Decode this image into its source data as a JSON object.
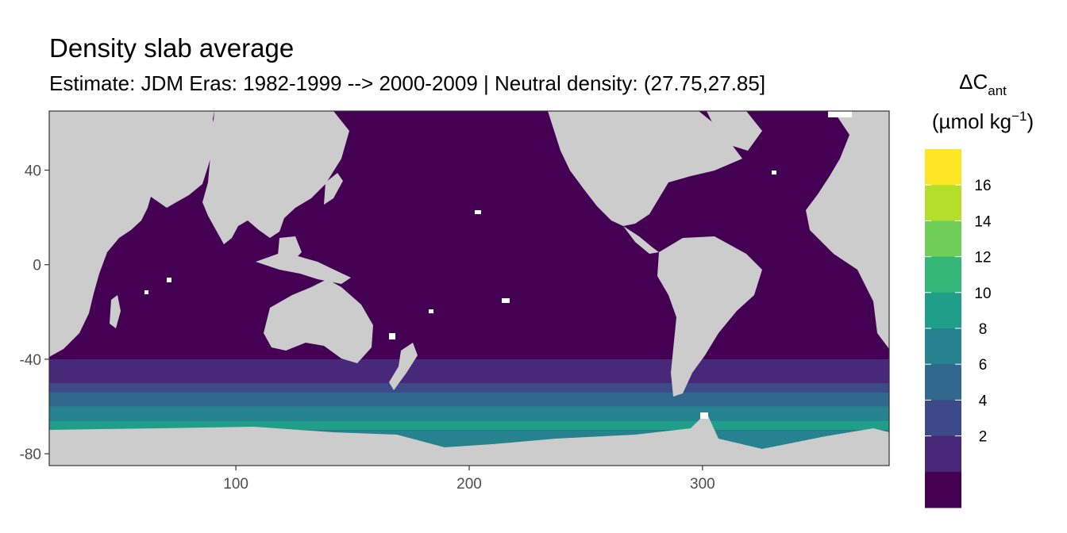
{
  "title": "Density slab average",
  "subtitle": "Estimate: JDM Eras: 1982-1999 --> 2000-2009 | Neutral density: (27.75,27.85]",
  "chart_data": {
    "type": "heatmap",
    "title": "Density slab average",
    "subtitle": "Estimate: JDM Eras: 1982-1999 --> 2000-2009 | Neutral density: (27.75,27.85]",
    "xlim": [
      20,
      380
    ],
    "ylim": [
      -85,
      65
    ],
    "x_ticks": [
      100,
      200,
      300
    ],
    "y_ticks": [
      40,
      0,
      -40,
      -80
    ],
    "land_color": "#cccccc",
    "nodata_color": "#ffffff",
    "legend": {
      "title_main": "ΔC",
      "title_sub": "ant",
      "unit_open": "(µmol kg",
      "unit_sup": "−1",
      "unit_close": ")",
      "labels": [
        "16",
        "14",
        "12",
        "10",
        "8",
        "6",
        "4",
        "2"
      ],
      "colors": [
        "#fde725",
        "#b5de2b",
        "#6ece58",
        "#35b779",
        "#1f9e89",
        "#26828e",
        "#31688e",
        "#3e4989",
        "#482878",
        "#440154"
      ]
    },
    "bands": [
      {
        "from": -30,
        "to": -40,
        "color": "#440154",
        "bin": "0-2"
      },
      {
        "from": -40,
        "to": -50,
        "color": "#482878",
        "bin": "2-4"
      },
      {
        "from": -50,
        "to": -54,
        "color": "#3e4989",
        "bin": "4-6"
      },
      {
        "from": -54,
        "to": -60,
        "color": "#31688e",
        "bin": "6-8"
      },
      {
        "from": -60,
        "to": -66,
        "color": "#26828e",
        "bin": "8-10"
      },
      {
        "from": -66,
        "to": -70,
        "color": "#1f9e89",
        "bin": "10-12"
      },
      {
        "from": -70,
        "to": -78,
        "color": "#26828e",
        "bin": "8-10"
      }
    ]
  }
}
